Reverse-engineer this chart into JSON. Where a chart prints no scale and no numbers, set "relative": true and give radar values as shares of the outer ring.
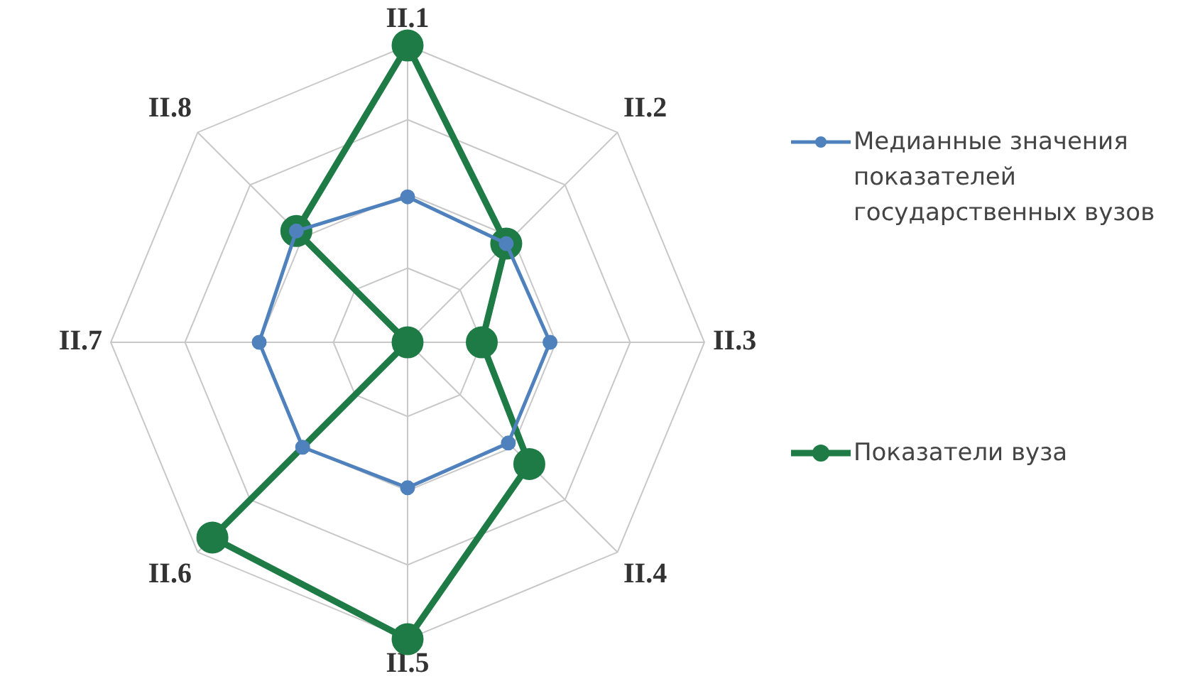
{
  "chart_data": {
    "type": "radar",
    "relative": true,
    "categories": [
      "II.1",
      "II.2",
      "II.3",
      "II.4",
      "II.5",
      "II.6",
      "II.7",
      "II.8"
    ],
    "series": [
      {
        "name": "Медианные значения показателей государственных вузов",
        "color": "#4f81bd",
        "values": [
          0.49,
          0.47,
          0.48,
          0.48,
          0.49,
          0.5,
          0.5,
          0.53
        ]
      },
      {
        "name": "Показатели вуза",
        "color": "#1e7b45",
        "values": [
          1,
          0.47,
          0.25,
          0.58,
          1,
          0.93,
          0,
          0.53
        ]
      }
    ],
    "grid": true,
    "legend": "right",
    "marker": "circle"
  }
}
